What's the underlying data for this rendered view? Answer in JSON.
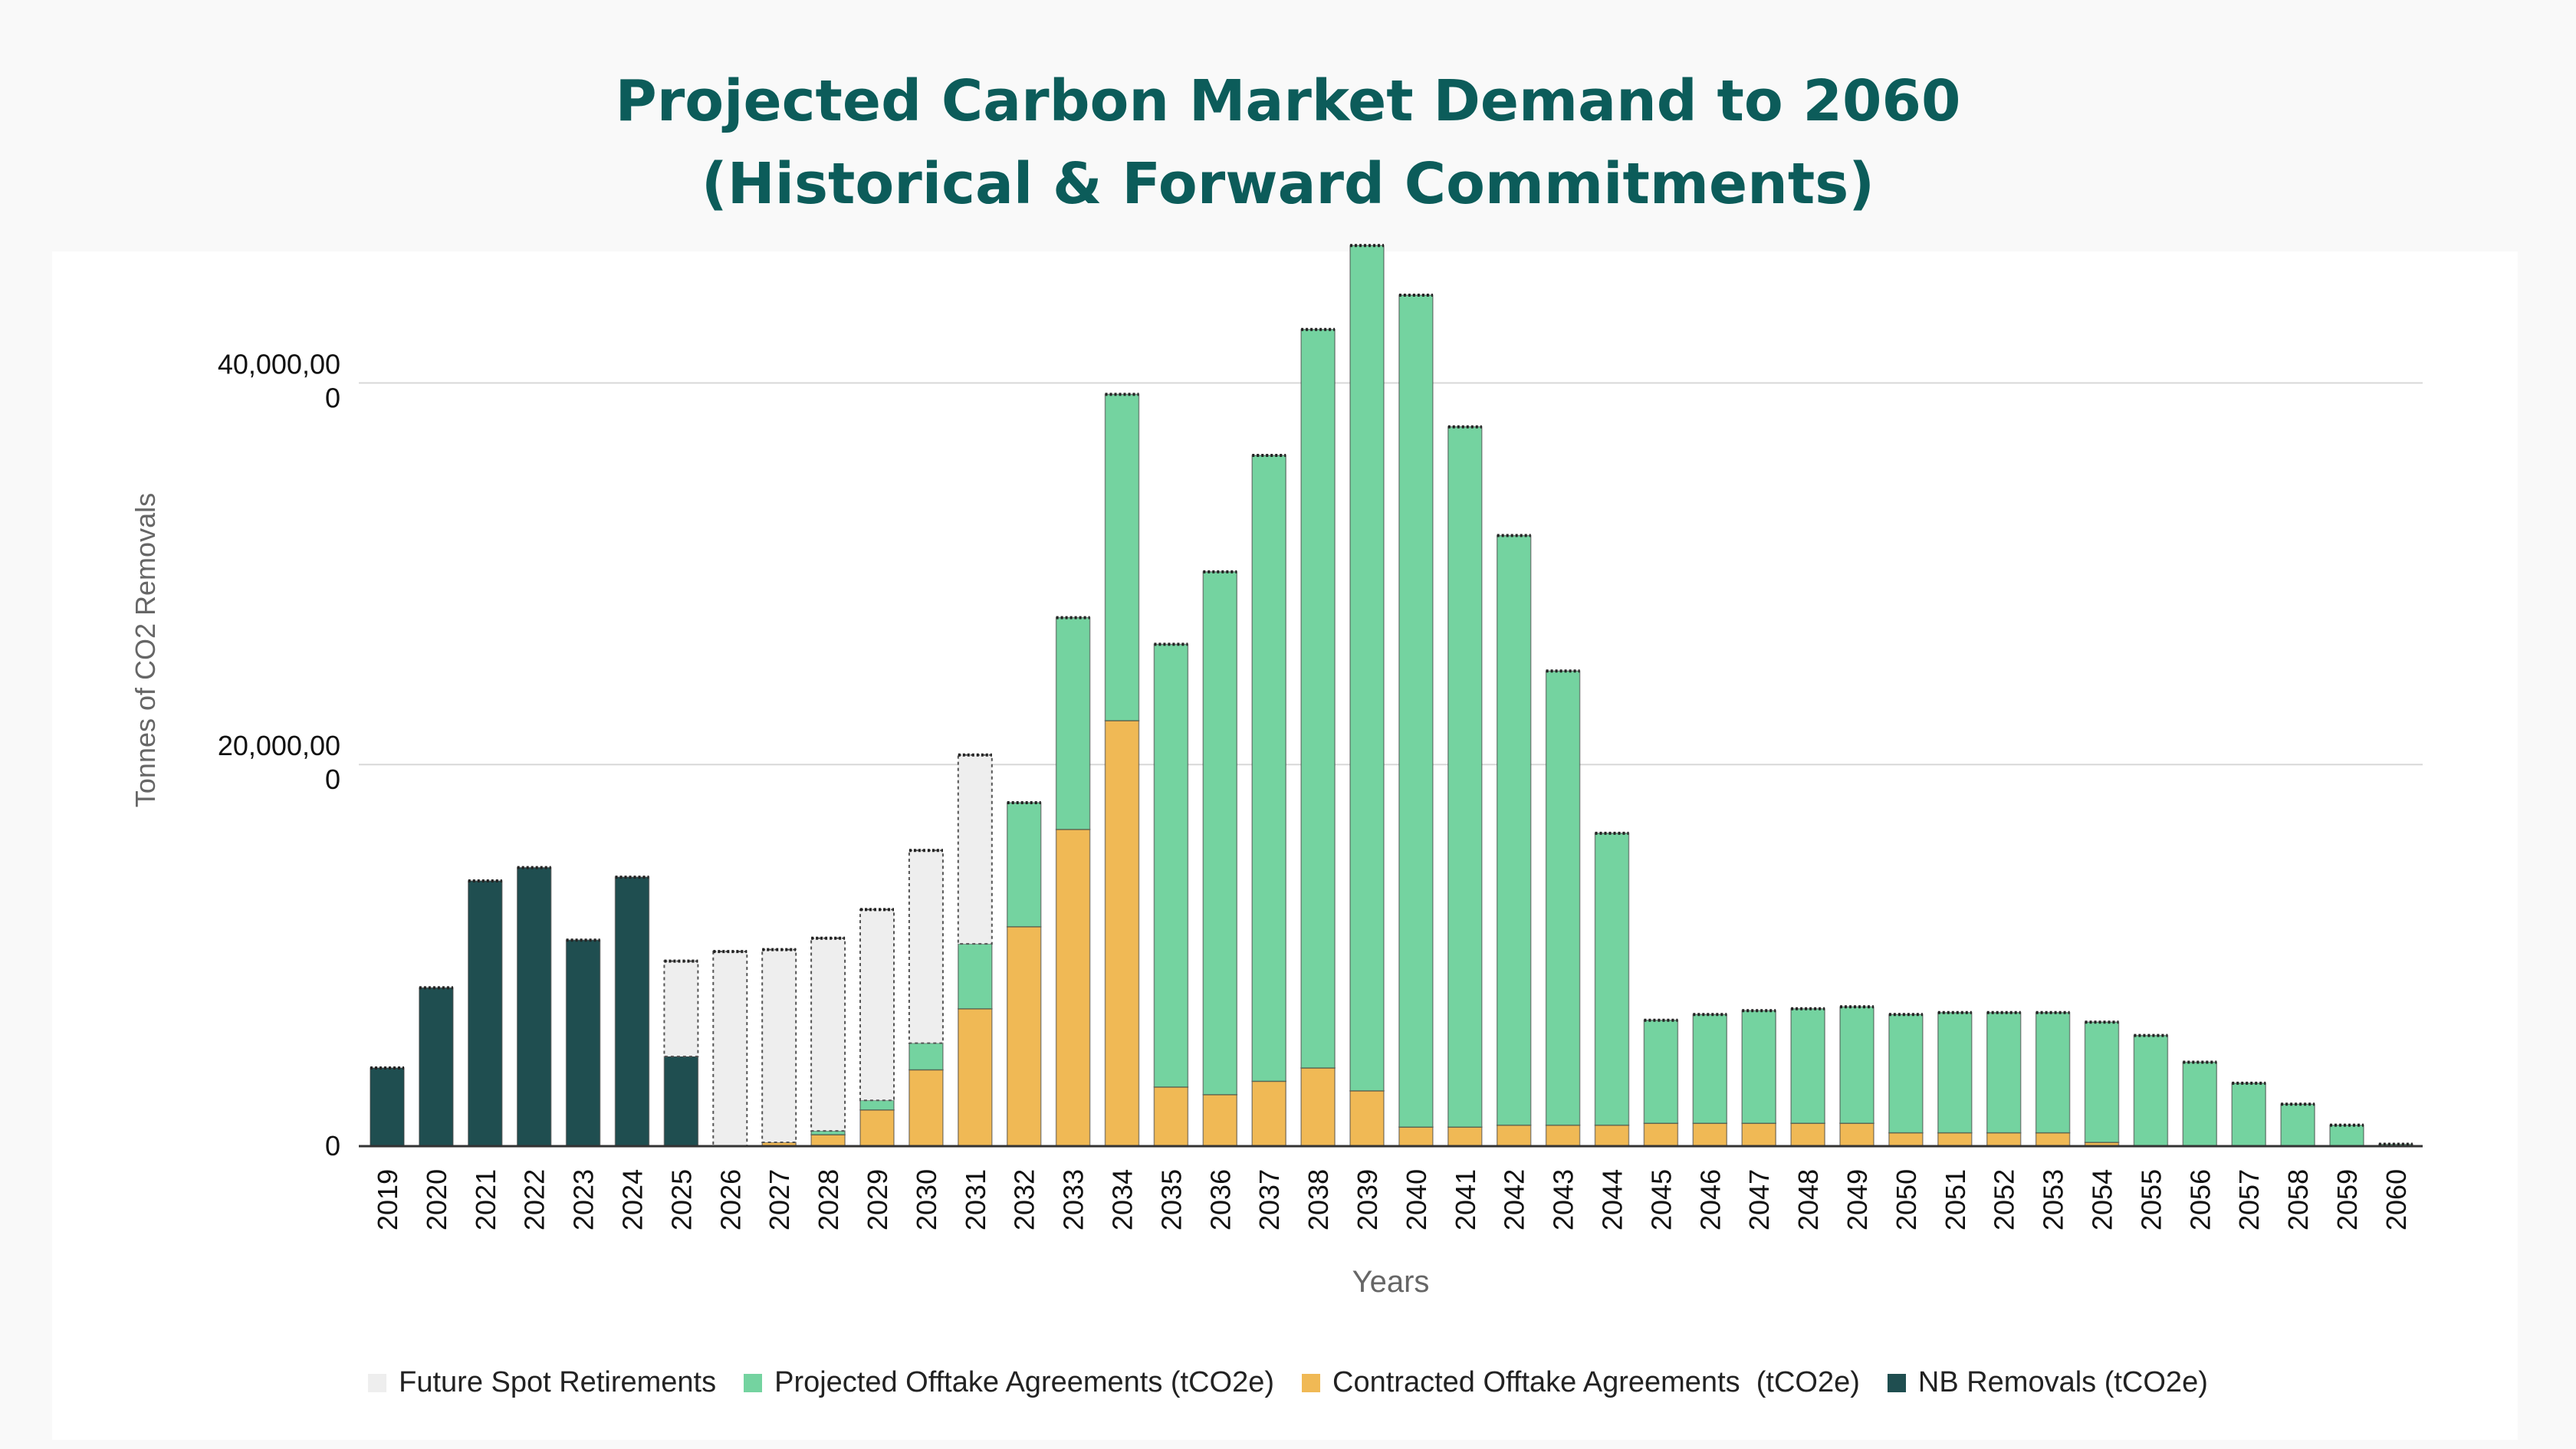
{
  "chart_data": {
    "type": "bar",
    "stacked": true,
    "title_line1": "Projected Carbon Market Demand to 2060",
    "title_line2": "(Historical & Forward Commitments)",
    "xlabel": "Years",
    "ylabel": "Tonnes of CO2 Removals",
    "ylim": [
      0,
      45000000
    ],
    "yticks": [
      {
        "value": 0,
        "label_line1": "0",
        "label_line2": ""
      },
      {
        "value": 20000000,
        "label_line1": "20,000,00",
        "label_line2": "0"
      },
      {
        "value": 40000000,
        "label_line1": "40,000,00",
        "label_line2": "0"
      }
    ],
    "grid": true,
    "legend_position": "bottom",
    "categories": [
      "2019",
      "2020",
      "2021",
      "2022",
      "2023",
      "2024",
      "2025",
      "2026",
      "2027",
      "2028",
      "2029",
      "2030",
      "2031",
      "2032",
      "2033",
      "2034",
      "2035",
      "2036",
      "2037",
      "2038",
      "2039",
      "2040",
      "2041",
      "2042",
      "2043",
      "2044",
      "2045",
      "2046",
      "2047",
      "2048",
      "2049",
      "2050",
      "2051",
      "2052",
      "2053",
      "2054",
      "2055",
      "2056",
      "2057",
      "2058",
      "2059",
      "2060"
    ],
    "series": [
      {
        "name": "NB Removals (tCO2e)",
        "color": "#1f4e50",
        "values": [
          4100000,
          8300000,
          13900000,
          14600000,
          10800000,
          14100000,
          4700000,
          0,
          0,
          0,
          0,
          0,
          0,
          0,
          0,
          0,
          0,
          0,
          0,
          0,
          0,
          0,
          0,
          0,
          0,
          0,
          0,
          0,
          0,
          0,
          0,
          0,
          0,
          0,
          0,
          0,
          0,
          0,
          0,
          0,
          0,
          0
        ]
      },
      {
        "name": "Contracted Offtake Agreements  (tCO2e)",
        "color": "#f0b955",
        "values": [
          0,
          0,
          0,
          0,
          0,
          0,
          0,
          0,
          200000,
          600000,
          1900000,
          4000000,
          7200000,
          11500000,
          16600000,
          22300000,
          3100000,
          2700000,
          3400000,
          4100000,
          2900000,
          1000000,
          1000000,
          1100000,
          1100000,
          1100000,
          1200000,
          1200000,
          1200000,
          1200000,
          1200000,
          700000,
          700000,
          700000,
          700000,
          200000,
          0,
          0,
          0,
          0,
          0,
          0
        ]
      },
      {
        "name": "Projected Offtake Agreements (tCO2e)",
        "color": "#74d3a0",
        "values": [
          0,
          0,
          0,
          0,
          0,
          0,
          0,
          0,
          0,
          200000,
          500000,
          1400000,
          3400000,
          6500000,
          11100000,
          17100000,
          23200000,
          27400000,
          32800000,
          38700000,
          44300000,
          43600000,
          36700000,
          30900000,
          23800000,
          15300000,
          5400000,
          5700000,
          5900000,
          6000000,
          6100000,
          6200000,
          6300000,
          6300000,
          6300000,
          6300000,
          5800000,
          4400000,
          3300000,
          2200000,
          1100000,
          100000
        ]
      },
      {
        "name": "Future Spot Retirements",
        "color": "#eeeeee",
        "values": [
          0,
          0,
          0,
          0,
          0,
          0,
          5000000,
          10200000,
          10100000,
          10100000,
          10000000,
          10100000,
          9900000,
          0,
          0,
          0,
          0,
          0,
          0,
          0,
          0,
          0,
          0,
          0,
          0,
          0,
          0,
          0,
          0,
          0,
          0,
          0,
          0,
          0,
          0,
          0,
          0,
          0,
          0,
          0,
          0,
          0
        ]
      }
    ]
  }
}
